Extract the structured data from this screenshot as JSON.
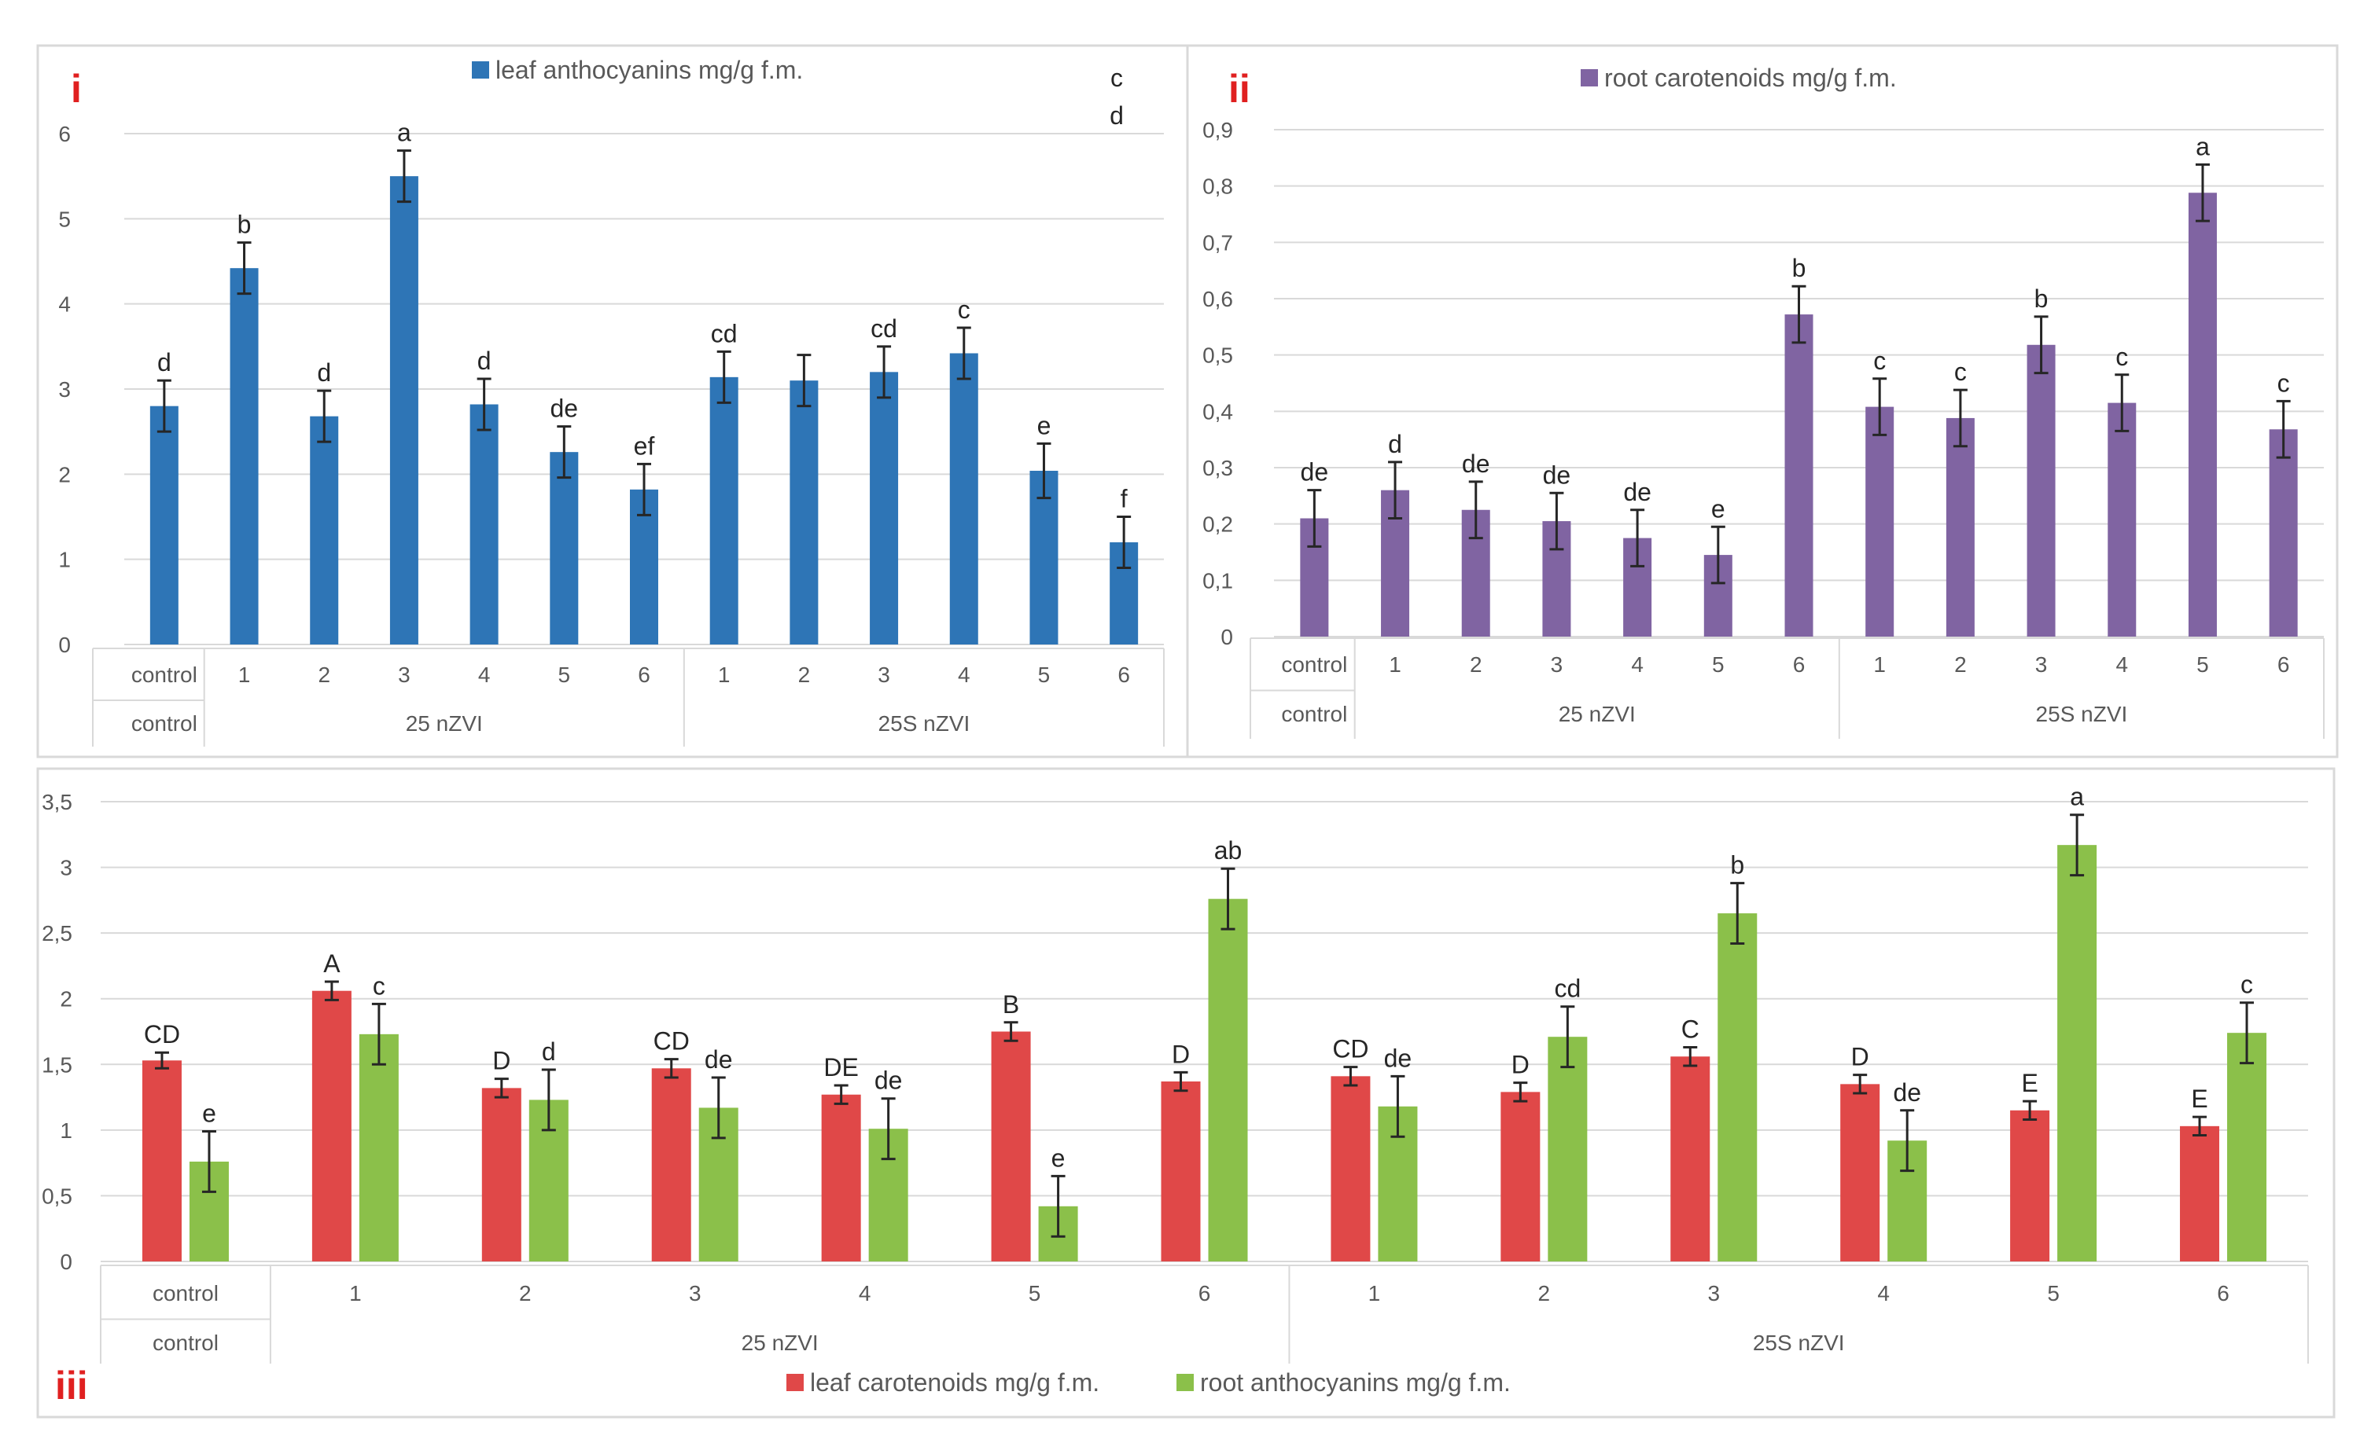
{
  "chart_data": [
    {
      "id": "i",
      "panel_label": "i",
      "type": "bar",
      "legend": [
        {
          "name": "leaf anthocyanins mg/g f.m.",
          "color": "#2e75b6"
        }
      ],
      "yticks": [
        "0",
        "1",
        "2",
        "3",
        "4",
        "5",
        "6"
      ],
      "ylim": [
        0,
        6
      ],
      "categories": [
        "control",
        "1",
        "2",
        "3",
        "4",
        "5",
        "6",
        "1",
        "2",
        "3",
        "4",
        "5",
        "6"
      ],
      "groups": [
        {
          "label": "control",
          "start": 0,
          "end": 0
        },
        {
          "label": "25 nZVI",
          "start": 1,
          "end": 6
        },
        {
          "label": "25S nZVI",
          "start": 7,
          "end": 12
        }
      ],
      "series": [
        {
          "name": "leaf anthocyanins mg/g f.m.",
          "color": "#2e75b6",
          "values": [
            2.8,
            4.42,
            2.68,
            5.5,
            2.82,
            2.26,
            1.82,
            3.14,
            3.1,
            3.2,
            3.42,
            2.04,
            1.2
          ],
          "errors": [
            0.3,
            0.3,
            0.3,
            0.3,
            0.3,
            0.3,
            0.3,
            0.3,
            0.3,
            0.3,
            0.3,
            0.32,
            0.3
          ],
          "letters": [
            "d",
            "b",
            "d",
            "a",
            "d",
            "de",
            "ef",
            "cd",
            "",
            "cd",
            "c",
            "e",
            "f"
          ]
        }
      ],
      "stray_annotation": [
        "c",
        "d"
      ]
    },
    {
      "id": "ii",
      "panel_label": "ii",
      "type": "bar",
      "legend": [
        {
          "name": "root carotenoids mg/g f.m.",
          "color": "#8064a2"
        }
      ],
      "yticks": [
        "0",
        "0,1",
        "0,2",
        "0,3",
        "0,4",
        "0,5",
        "0,6",
        "0,7",
        "0,8",
        "0,9"
      ],
      "ylim": [
        0,
        0.9
      ],
      "categories": [
        "control",
        "1",
        "2",
        "3",
        "4",
        "5",
        "6",
        "1",
        "2",
        "3",
        "4",
        "5",
        "6"
      ],
      "groups": [
        {
          "label": "control",
          "start": 0,
          "end": 0
        },
        {
          "label": "25 nZVI",
          "start": 1,
          "end": 6
        },
        {
          "label": "25S nZVI",
          "start": 7,
          "end": 12
        }
      ],
      "series": [
        {
          "name": "root carotenoids mg/g f.m.",
          "color": "#8064a2",
          "values": [
            0.21,
            0.26,
            0.225,
            0.205,
            0.175,
            0.145,
            0.572,
            0.408,
            0.388,
            0.518,
            0.415,
            0.788,
            0.368
          ],
          "errors": [
            0.05,
            0.05,
            0.05,
            0.05,
            0.05,
            0.05,
            0.05,
            0.05,
            0.05,
            0.05,
            0.05,
            0.05,
            0.05
          ],
          "letters": [
            "de",
            "d",
            "de",
            "de",
            "de",
            "e",
            "b",
            "c",
            "c",
            "b",
            "c",
            "a",
            "c"
          ]
        }
      ]
    },
    {
      "id": "iii",
      "panel_label": "iii",
      "type": "bar",
      "legend": [
        {
          "name": "leaf carotenoids mg/g f.m.",
          "color": "#e04848"
        },
        {
          "name": "root anthocyanins mg/g f.m.",
          "color": "#8bc04a"
        }
      ],
      "yticks": [
        "0",
        "0,5",
        "1",
        "1,5",
        "2",
        "2,5",
        "3",
        "3,5"
      ],
      "ylim": [
        0,
        3.5
      ],
      "categories": [
        "control",
        "1",
        "2",
        "3",
        "4",
        "5",
        "6",
        "1",
        "2",
        "3",
        "4",
        "5",
        "6"
      ],
      "groups": [
        {
          "label": "control",
          "start": 0,
          "end": 0
        },
        {
          "label": "25 nZVI",
          "start": 1,
          "end": 6
        },
        {
          "label": "25S nZVI",
          "start": 7,
          "end": 12
        }
      ],
      "series": [
        {
          "name": "leaf carotenoids mg/g f.m.",
          "color": "#e04848",
          "values": [
            1.53,
            2.06,
            1.32,
            1.47,
            1.27,
            1.75,
            1.37,
            1.41,
            1.29,
            1.56,
            1.35,
            1.15,
            1.03
          ],
          "errors": [
            0.06,
            0.07,
            0.07,
            0.07,
            0.07,
            0.07,
            0.07,
            0.07,
            0.07,
            0.07,
            0.07,
            0.07,
            0.07
          ],
          "letters": [
            "CD",
            "A",
            "D",
            "CD",
            "DE",
            "B",
            "D",
            "CD",
            "D",
            "C",
            "D",
            "E",
            "E"
          ]
        },
        {
          "name": "root anthocyanins mg/g f.m.",
          "color": "#8bc04a",
          "values": [
            0.76,
            1.73,
            1.23,
            1.17,
            1.01,
            0.42,
            2.76,
            1.18,
            1.71,
            2.65,
            0.92,
            3.17,
            1.74
          ],
          "errors": [
            0.23,
            0.23,
            0.23,
            0.23,
            0.23,
            0.23,
            0.23,
            0.23,
            0.23,
            0.23,
            0.23,
            0.23,
            0.23
          ],
          "letters": [
            "e",
            "c",
            "d",
            "de",
            "de",
            "e",
            "ab",
            "de",
            "cd",
            "b",
            "de",
            "a",
            "c"
          ]
        }
      ]
    }
  ]
}
